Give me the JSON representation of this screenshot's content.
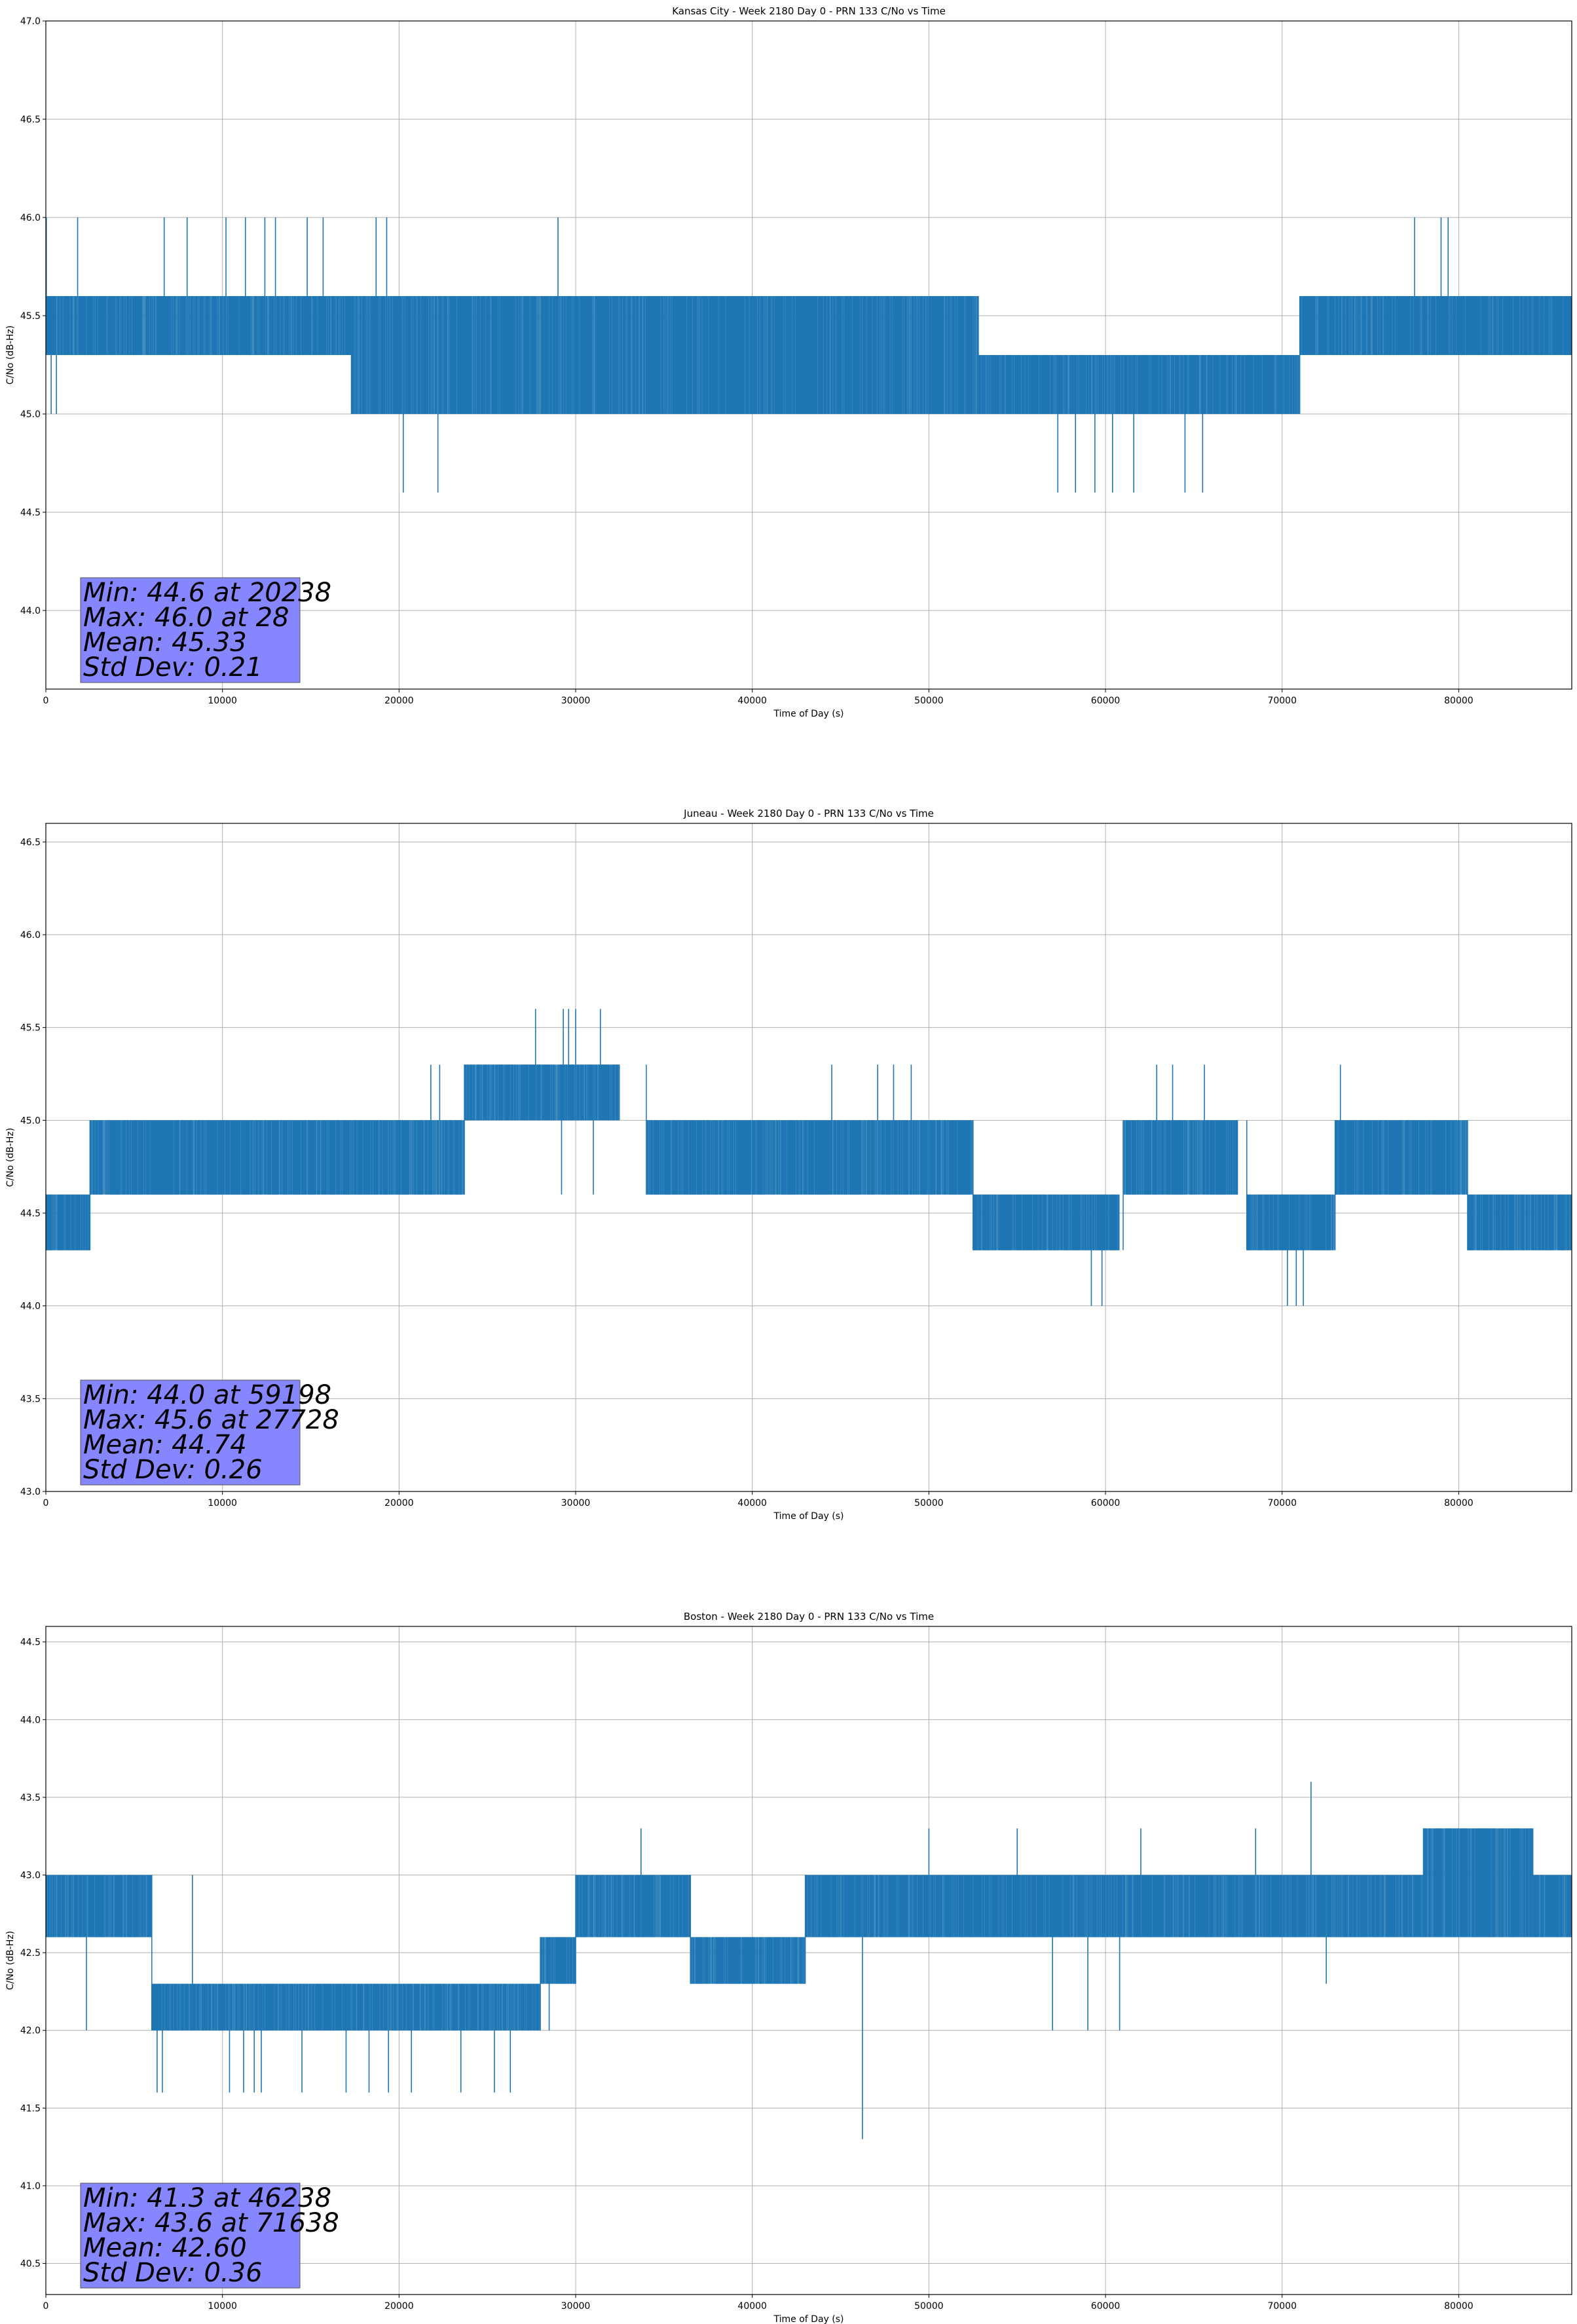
{
  "chart_data": [
    {
      "type": "line",
      "title": "Kansas City - Week 2180 Day 0 - PRN 133 C/No vs Time",
      "xlabel": "Time of Day (s)",
      "ylabel": "C/No (dB-Hz)",
      "xlim": [
        0,
        86400
      ],
      "ylim": [
        43.6,
        47.0
      ],
      "xticks": [
        0,
        10000,
        20000,
        30000,
        40000,
        50000,
        60000,
        70000,
        80000
      ],
      "xtick_labels": [
        "0",
        "10000",
        "20000",
        "30000",
        "40000",
        "50000",
        "60000",
        "70000",
        "80000"
      ],
      "yticks": [
        44.0,
        44.5,
        45.0,
        45.5,
        46.0,
        46.5,
        47.0
      ],
      "ytick_labels": [
        "44.0",
        "44.5",
        "45.0",
        "45.5",
        "46.0",
        "46.5",
        "47.0"
      ],
      "grid": true,
      "line_color": "#1f77b4",
      "band_segments": [
        {
          "start": 0,
          "end": 17300,
          "low": 45.3,
          "high": 45.6
        },
        {
          "start": 17300,
          "end": 52800,
          "low": 45.0,
          "high": 45.6
        },
        {
          "start": 52800,
          "end": 71000,
          "low": 45.0,
          "high": 45.3
        },
        {
          "start": 71000,
          "end": 86400,
          "low": 45.3,
          "high": 45.6
        }
      ],
      "spikes": [
        {
          "x": 28,
          "y": 46.0
        },
        {
          "x": 1800,
          "y": 46.0
        },
        {
          "x": 6700,
          "y": 46.0
        },
        {
          "x": 8000,
          "y": 46.0
        },
        {
          "x": 10200,
          "y": 46.0
        },
        {
          "x": 11300,
          "y": 46.0
        },
        {
          "x": 12400,
          "y": 46.0
        },
        {
          "x": 13000,
          "y": 46.0
        },
        {
          "x": 14800,
          "y": 46.0
        },
        {
          "x": 15700,
          "y": 46.0
        },
        {
          "x": 18700,
          "y": 46.0
        },
        {
          "x": 19300,
          "y": 46.0
        },
        {
          "x": 29000,
          "y": 46.0
        },
        {
          "x": 77500,
          "y": 46.0
        },
        {
          "x": 79000,
          "y": 46.0
        },
        {
          "x": 79400,
          "y": 46.0
        },
        {
          "x": 20238,
          "y": 44.6
        },
        {
          "x": 22200,
          "y": 44.6
        },
        {
          "x": 57300,
          "y": 44.6
        },
        {
          "x": 58300,
          "y": 44.6
        },
        {
          "x": 59400,
          "y": 44.6
        },
        {
          "x": 60400,
          "y": 44.6
        },
        {
          "x": 61600,
          "y": 44.6
        },
        {
          "x": 64500,
          "y": 44.6
        },
        {
          "x": 65500,
          "y": 44.6
        },
        {
          "x": 300,
          "y": 45.0
        },
        {
          "x": 600,
          "y": 45.0
        }
      ],
      "annotation_lines": [
        "Min: 44.6 at 20238",
        "Max: 46.0 at 28",
        "Mean: 45.33",
        "Std Dev: 0.21"
      ],
      "annotation_color": "#8080ff",
      "annotation_position": "bottom-left"
    },
    {
      "type": "line",
      "title": "Juneau - Week 2180 Day 0 - PRN 133 C/No vs Time",
      "xlabel": "Time of Day (s)",
      "ylabel": "C/No (dB-Hz)",
      "xlim": [
        0,
        86400
      ],
      "ylim": [
        43.0,
        46.6
      ],
      "xticks": [
        0,
        10000,
        20000,
        30000,
        40000,
        50000,
        60000,
        70000,
        80000
      ],
      "xtick_labels": [
        "0",
        "10000",
        "20000",
        "30000",
        "40000",
        "50000",
        "60000",
        "70000",
        "80000"
      ],
      "yticks": [
        43.0,
        43.5,
        44.0,
        44.5,
        45.0,
        45.5,
        46.0,
        46.5
      ],
      "ytick_labels": [
        "43.0",
        "43.5",
        "44.0",
        "44.5",
        "45.0",
        "45.5",
        "46.0",
        "46.5"
      ],
      "grid": true,
      "line_color": "#1f77b4",
      "band_segments": [
        {
          "start": 0,
          "end": 2500,
          "low": 44.3,
          "high": 44.6
        },
        {
          "start": 2500,
          "end": 20500,
          "low": 44.6,
          "high": 45.0
        },
        {
          "start": 20500,
          "end": 23700,
          "low": 44.6,
          "high": 45.0
        },
        {
          "start": 23700,
          "end": 32500,
          "low": 45.0,
          "high": 45.3
        },
        {
          "start": 34000,
          "end": 52500,
          "low": 44.6,
          "high": 45.0
        },
        {
          "start": 52500,
          "end": 60800,
          "low": 44.3,
          "high": 44.6
        },
        {
          "start": 61000,
          "end": 67500,
          "low": 44.6,
          "high": 45.0
        },
        {
          "start": 68000,
          "end": 73000,
          "low": 44.3,
          "high": 44.6
        },
        {
          "start": 73000,
          "end": 80500,
          "low": 44.6,
          "high": 45.0
        },
        {
          "start": 80500,
          "end": 86400,
          "low": 44.3,
          "high": 44.6
        }
      ],
      "spikes": [
        {
          "x": 27728,
          "y": 45.6
        },
        {
          "x": 29300,
          "y": 45.6
        },
        {
          "x": 29600,
          "y": 45.6
        },
        {
          "x": 30000,
          "y": 45.6
        },
        {
          "x": 31400,
          "y": 45.6
        },
        {
          "x": 21800,
          "y": 45.3
        },
        {
          "x": 22300,
          "y": 45.3
        },
        {
          "x": 44500,
          "y": 45.3
        },
        {
          "x": 47100,
          "y": 45.3
        },
        {
          "x": 48000,
          "y": 45.3
        },
        {
          "x": 49000,
          "y": 45.3
        },
        {
          "x": 62900,
          "y": 45.3
        },
        {
          "x": 63800,
          "y": 45.3
        },
        {
          "x": 65600,
          "y": 45.3
        },
        {
          "x": 73300,
          "y": 45.3
        },
        {
          "x": 59198,
          "y": 44.0
        },
        {
          "x": 59800,
          "y": 44.0
        },
        {
          "x": 70300,
          "y": 44.0
        },
        {
          "x": 70800,
          "y": 44.0
        },
        {
          "x": 71200,
          "y": 44.0
        },
        {
          "x": 29200,
          "y": 44.6
        },
        {
          "x": 31000,
          "y": 44.6
        }
      ],
      "annotation_lines": [
        "Min: 44.0 at 59198",
        "Max: 45.6 at 27728",
        "Mean: 44.74",
        "Std Dev: 0.26"
      ],
      "annotation_color": "#8080ff",
      "annotation_position": "bottom-left"
    },
    {
      "type": "line",
      "title": "Boston - Week 2180 Day 0 - PRN 133 C/No vs Time",
      "xlabel": "Time of Day (s)",
      "ylabel": "C/No (dB-Hz)",
      "xlim": [
        0,
        86400
      ],
      "ylim": [
        40.3,
        44.6
      ],
      "xticks": [
        0,
        10000,
        20000,
        30000,
        40000,
        50000,
        60000,
        70000,
        80000
      ],
      "xtick_labels": [
        "0",
        "10000",
        "20000",
        "30000",
        "40000",
        "50000",
        "60000",
        "70000",
        "80000"
      ],
      "yticks": [
        40.5,
        41.0,
        41.5,
        42.0,
        42.5,
        43.0,
        43.5,
        44.0,
        44.5
      ],
      "ytick_labels": [
        "40.5",
        "41.0",
        "41.5",
        "42.0",
        "42.5",
        "43.0",
        "43.5",
        "44.0",
        "44.5"
      ],
      "grid": true,
      "line_color": "#1f77b4",
      "band_segments": [
        {
          "start": 0,
          "end": 6000,
          "low": 42.6,
          "high": 43.0
        },
        {
          "start": 6000,
          "end": 28000,
          "low": 42.0,
          "high": 42.3
        },
        {
          "start": 28000,
          "end": 30000,
          "low": 42.3,
          "high": 42.6
        },
        {
          "start": 30000,
          "end": 36500,
          "low": 42.6,
          "high": 43.0
        },
        {
          "start": 36500,
          "end": 43000,
          "low": 42.3,
          "high": 42.6
        },
        {
          "start": 43000,
          "end": 78000,
          "low": 42.6,
          "high": 43.0
        },
        {
          "start": 78000,
          "end": 84200,
          "low": 42.6,
          "high": 43.3
        },
        {
          "start": 84200,
          "end": 86400,
          "low": 42.6,
          "high": 43.0
        }
      ],
      "spikes": [
        {
          "x": 46238,
          "y": 41.3
        },
        {
          "x": 71638,
          "y": 43.6
        },
        {
          "x": 6300,
          "y": 41.6
        },
        {
          "x": 6600,
          "y": 41.6
        },
        {
          "x": 10400,
          "y": 41.6
        },
        {
          "x": 11200,
          "y": 41.6
        },
        {
          "x": 11800,
          "y": 41.6
        },
        {
          "x": 12200,
          "y": 41.6
        },
        {
          "x": 14500,
          "y": 41.6
        },
        {
          "x": 17000,
          "y": 41.6
        },
        {
          "x": 18300,
          "y": 41.6
        },
        {
          "x": 19400,
          "y": 41.6
        },
        {
          "x": 20700,
          "y": 41.6
        },
        {
          "x": 23500,
          "y": 41.6
        },
        {
          "x": 25400,
          "y": 41.6
        },
        {
          "x": 26300,
          "y": 41.6
        },
        {
          "x": 2300,
          "y": 42.0
        },
        {
          "x": 28500,
          "y": 42.0
        },
        {
          "x": 57000,
          "y": 42.0
        },
        {
          "x": 59000,
          "y": 42.0
        },
        {
          "x": 60800,
          "y": 42.0
        },
        {
          "x": 8300,
          "y": 43.0
        },
        {
          "x": 33700,
          "y": 43.3
        },
        {
          "x": 50000,
          "y": 43.3
        },
        {
          "x": 55000,
          "y": 43.3
        },
        {
          "x": 62000,
          "y": 43.3
        },
        {
          "x": 68500,
          "y": 43.3
        },
        {
          "x": 72500,
          "y": 42.3
        }
      ],
      "annotation_lines": [
        "Min: 41.3 at 46238",
        "Max: 43.6 at 71638",
        "Mean: 42.60",
        "Std Dev: 0.36"
      ],
      "annotation_color": "#8080ff",
      "annotation_position": "bottom-left"
    }
  ]
}
